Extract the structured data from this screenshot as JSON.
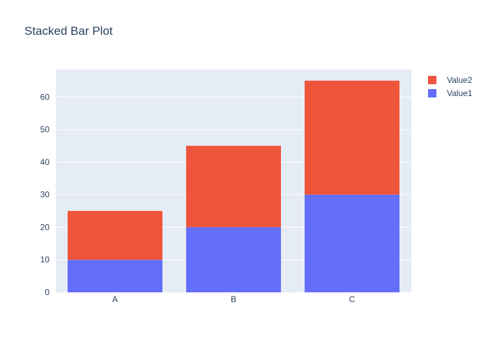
{
  "chart_data": {
    "type": "bar",
    "stacked": true,
    "title": "Stacked Bar Plot",
    "xlabel": "",
    "ylabel": "",
    "categories": [
      "A",
      "B",
      "C"
    ],
    "series": [
      {
        "name": "Value1",
        "values": [
          10,
          20,
          30
        ],
        "color": "#636efa"
      },
      {
        "name": "Value2",
        "values": [
          15,
          25,
          35
        ],
        "color": "#ef553b"
      }
    ],
    "ylim": [
      0,
      68.4
    ],
    "yticks": [
      0,
      10,
      20,
      30,
      40,
      50,
      60
    ],
    "grid": true,
    "legend_position": "top-right",
    "colors": {
      "plot_bg": "#e5ecf6",
      "grid": "#ffffff",
      "text": "#2a3f5f"
    }
  }
}
